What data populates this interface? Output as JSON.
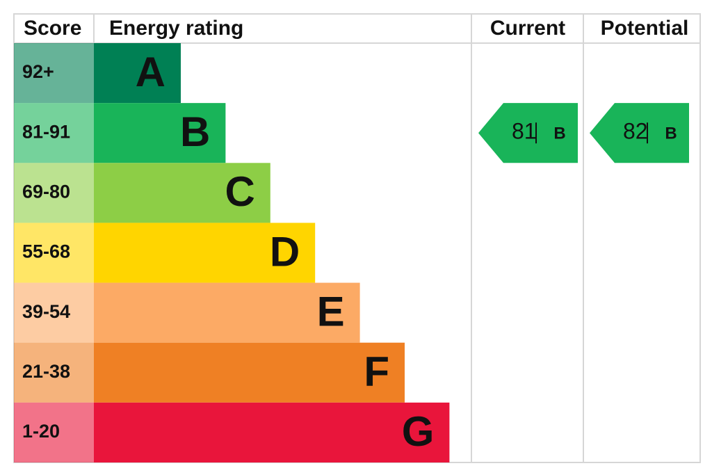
{
  "header": {
    "score": "Score",
    "rating": "Energy rating",
    "current": "Current",
    "potential": "Potential"
  },
  "bands": [
    {
      "score": "92+",
      "letter": "A",
      "color": "#008054"
    },
    {
      "score": "81-91",
      "letter": "B",
      "color": "#19b459"
    },
    {
      "score": "69-80",
      "letter": "C",
      "color": "#8dce46"
    },
    {
      "score": "55-68",
      "letter": "D",
      "color": "#ffd500"
    },
    {
      "score": "39-54",
      "letter": "E",
      "color": "#fcaa65"
    },
    {
      "score": "21-38",
      "letter": "F",
      "color": "#ef8024"
    },
    {
      "score": "1-20",
      "letter": "G",
      "color": "#e9153b"
    }
  ],
  "current": {
    "value": 81,
    "letter": "B"
  },
  "potential": {
    "value": 82,
    "letter": "B"
  }
}
